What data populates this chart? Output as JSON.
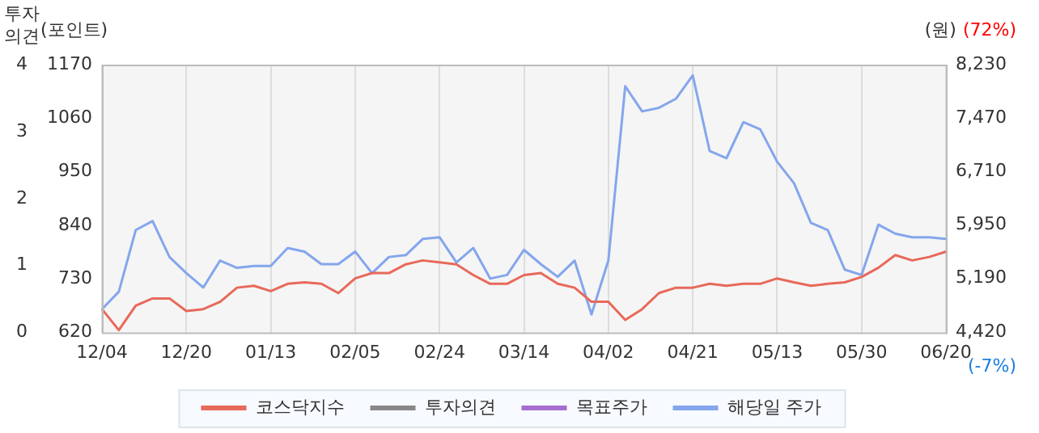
{
  "chart_data": {
    "type": "line",
    "categories": [
      "12/04",
      null,
      null,
      null,
      null,
      "12/20",
      null,
      null,
      null,
      null,
      "01/13",
      null,
      null,
      null,
      null,
      "02/05",
      null,
      null,
      null,
      null,
      "02/24",
      null,
      null,
      null,
      null,
      "03/14",
      null,
      null,
      null,
      null,
      "04/02",
      null,
      null,
      null,
      null,
      "04/21",
      null,
      null,
      null,
      null,
      "05/13",
      null,
      null,
      null,
      null,
      "05/30",
      null,
      null,
      null,
      null,
      "06/20"
    ],
    "series": [
      {
        "name": "코스닥지수",
        "color": "#e8695a",
        "axis": "y",
        "values": [
          668,
          625,
          675,
          690,
          690,
          664,
          668,
          683,
          712,
          716,
          705,
          720,
          723,
          720,
          701,
          731,
          742,
          742,
          760,
          768,
          764,
          760,
          738,
          720,
          720,
          738,
          742,
          720,
          712,
          683,
          683,
          646,
          668,
          701,
          712,
          712,
          720,
          716,
          720,
          720,
          731,
          723,
          716,
          720,
          723,
          734,
          753,
          779,
          768,
          775,
          786
        ]
      },
      {
        "name": "투자의견",
        "color": "#888888",
        "axis": "y3",
        "values": [
          null,
          null,
          null,
          null,
          null,
          null,
          null,
          null,
          null,
          null,
          null,
          null,
          null,
          null,
          null,
          null,
          null,
          null,
          null,
          null,
          null,
          null,
          null,
          null,
          null,
          null,
          null,
          null,
          null,
          null,
          null,
          null,
          null,
          null,
          null,
          null,
          null,
          null,
          null,
          null,
          null,
          null,
          null,
          null,
          null,
          null,
          null,
          null,
          null,
          null,
          null
        ]
      },
      {
        "name": "목표주가",
        "color": "#a66fcf",
        "axis": "y2",
        "values": [
          null,
          null,
          null,
          null,
          null,
          null,
          null,
          null,
          null,
          null,
          null,
          null,
          null,
          null,
          null,
          null,
          null,
          null,
          null,
          null,
          null,
          null,
          null,
          null,
          null,
          null,
          null,
          null,
          null,
          null,
          null,
          null,
          null,
          null,
          null,
          null,
          null,
          null,
          null,
          null,
          null,
          null,
          null,
          null,
          null,
          null,
          null,
          null,
          null,
          null,
          null
        ]
      },
      {
        "name": "해당일 주가",
        "color": "#84a6ec",
        "axis": "y2",
        "values": [
          4752,
          5000,
          5877,
          6005,
          5494,
          5264,
          5059,
          5443,
          5340,
          5366,
          5366,
          5622,
          5571,
          5392,
          5392,
          5571,
          5264,
          5494,
          5520,
          5750,
          5775,
          5417,
          5622,
          5187,
          5238,
          5596,
          5392,
          5213,
          5443,
          4676,
          5443,
          7923,
          7565,
          7616,
          7744,
          8077,
          7003,
          6900,
          7412,
          7309,
          6849,
          6542,
          5980,
          5877,
          5315,
          5238,
          5954,
          5826,
          5775,
          5775,
          5750
        ]
      }
    ],
    "ylabel": "(포인트)",
    "y2label": "(원)",
    "y3label": "투자의견",
    "ylim": [
      620,
      1170
    ],
    "yticks": [
      620,
      730,
      840,
      950,
      1060,
      1170
    ],
    "y2lim": [
      4420,
      8230
    ],
    "y2ticks": [
      {
        "value": 4420,
        "label": "4,420"
      },
      {
        "value": 5190,
        "label": "5,190"
      },
      {
        "value": 5950,
        "label": "5,950"
      },
      {
        "value": 6710,
        "label": "6,710"
      },
      {
        "value": 7470,
        "label": "7,470"
      },
      {
        "value": 8230,
        "label": "8,230"
      }
    ],
    "y3lim": [
      0,
      4
    ],
    "y3ticks": [
      0,
      1,
      2,
      3,
      4
    ],
    "annotations": [
      "(72%)",
      "(-7%)"
    ],
    "grid": "x",
    "legend": "bottom",
    "marker": "none",
    "line_style": "solid"
  }
}
